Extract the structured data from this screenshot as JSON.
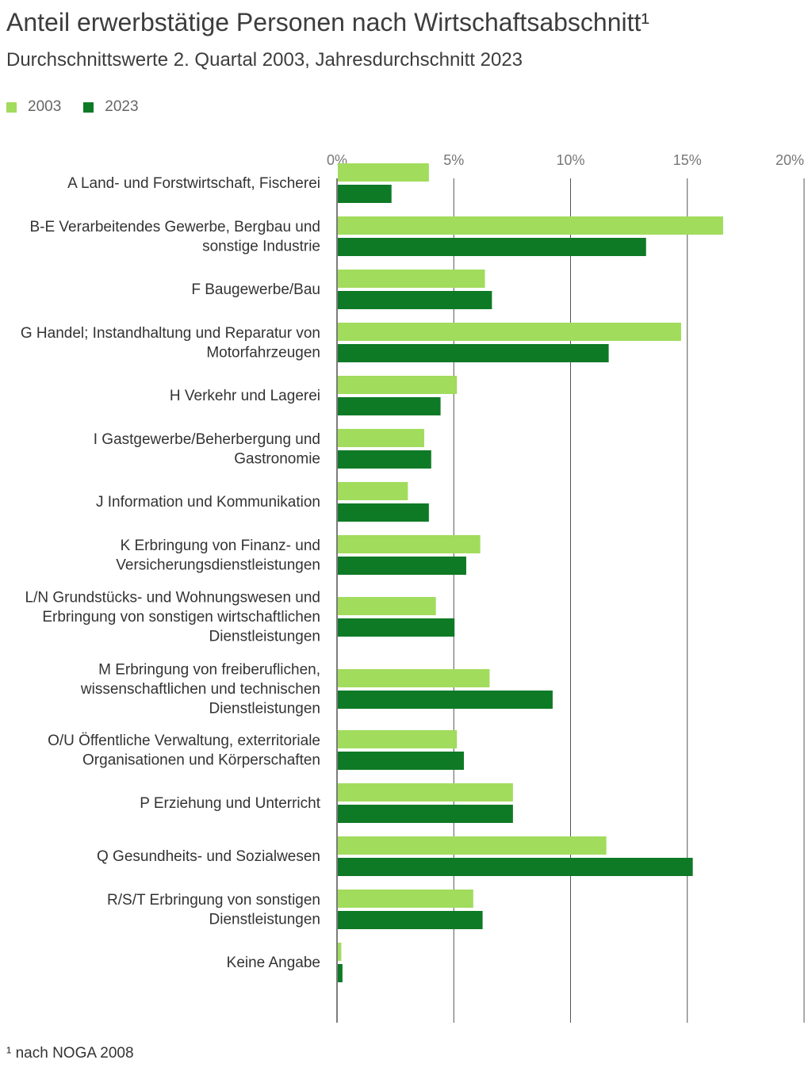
{
  "header": {
    "title": "Anteil erwerbstätige Personen nach Wirtschaftsabschnitt¹",
    "subtitle": "Durchschnittswerte 2. Quartal 2003, Jahresdurchschnitt 2023"
  },
  "footnote": "¹ nach NOGA 2008",
  "colors": {
    "2003": "#a1dc5d",
    "2023": "#0e7a25",
    "grid": "#555555",
    "axis_text": "#777777"
  },
  "chart_data": {
    "type": "bar",
    "orientation": "horizontal",
    "title": "Anteil erwerbstätige Personen nach Wirtschaftsabschnitt¹",
    "subtitle": "Durchschnittswerte 2. Quartal 2003, Jahresdurchschnitt 2023",
    "xlim": [
      0,
      20
    ],
    "x_ticks": [
      "0%",
      "5%",
      "10%",
      "15%",
      "20%"
    ],
    "x_tick_values": [
      0,
      5,
      10,
      15,
      20
    ],
    "grid": true,
    "legend_position": "top-left",
    "categories": [
      [
        "A Land- und Forstwirtschaft, Fischerei"
      ],
      [
        "B-E Verarbeitendes Gewerbe, Bergbau und",
        "sonstige Industrie"
      ],
      [
        "F Baugewerbe/Bau"
      ],
      [
        "G Handel; Instandhaltung und Reparatur von",
        "Motorfahrzeugen"
      ],
      [
        "H Verkehr und Lagerei"
      ],
      [
        "I Gastgewerbe/Beherbergung und",
        "Gastronomie"
      ],
      [
        "J Information und Kommunikation"
      ],
      [
        "K Erbringung von Finanz- und",
        "Versicherungsdienstleistungen"
      ],
      [
        "L/N Grundstücks- und Wohnungswesen und",
        "Erbringung von sonstigen wirtschaftlichen",
        "Dienstleistungen"
      ],
      [
        "M Erbringung von freiberuflichen,",
        "wissenschaftlichen und technischen",
        "Dienstleistungen"
      ],
      [
        "O/U Öffentliche Verwaltung, exterritoriale",
        "Organisationen und Körperschaften"
      ],
      [
        "P Erziehung und Unterricht"
      ],
      [
        "Q Gesundheits- und Sozialwesen"
      ],
      [
        "R/S/T Erbringung von sonstigen",
        "Dienstleistungen"
      ],
      [
        "Keine Angabe"
      ]
    ],
    "series": [
      {
        "name": "2003",
        "color": "#a1dc5d",
        "values": [
          3.9,
          16.5,
          6.3,
          14.7,
          5.1,
          3.7,
          3.0,
          6.1,
          4.2,
          6.5,
          5.1,
          7.5,
          11.5,
          5.8,
          0.15
        ]
      },
      {
        "name": "2023",
        "color": "#0e7a25",
        "values": [
          2.3,
          13.2,
          6.6,
          11.6,
          4.4,
          4.0,
          3.9,
          5.5,
          5.0,
          9.2,
          5.4,
          7.5,
          15.2,
          6.2,
          0.2
        ]
      }
    ]
  }
}
